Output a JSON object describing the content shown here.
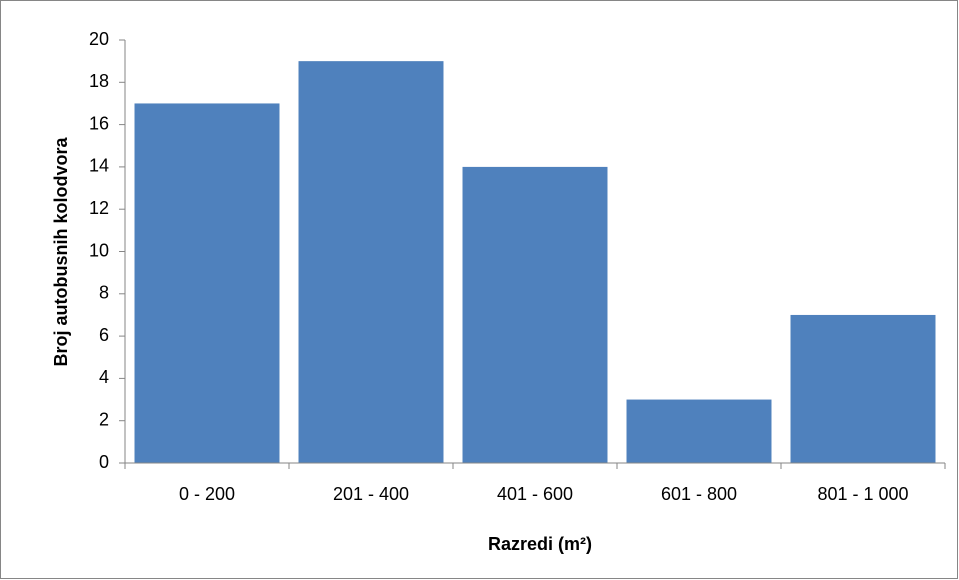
{
  "chart_data": {
    "type": "bar",
    "x_label": "Razredi (m²)",
    "y_label": "Broj autobusnih kolodvora",
    "categories": [
      "0 - 200",
      "201 - 400",
      "401 - 600",
      "601 - 800",
      "801 - 1 000"
    ],
    "values": [
      17,
      19,
      14,
      3,
      7
    ],
    "color": "#4f81bd",
    "ylim": [
      0,
      20
    ],
    "yticks": [
      0,
      2,
      4,
      6,
      8,
      10,
      12,
      14,
      16,
      18,
      20
    ],
    "grid": false
  }
}
